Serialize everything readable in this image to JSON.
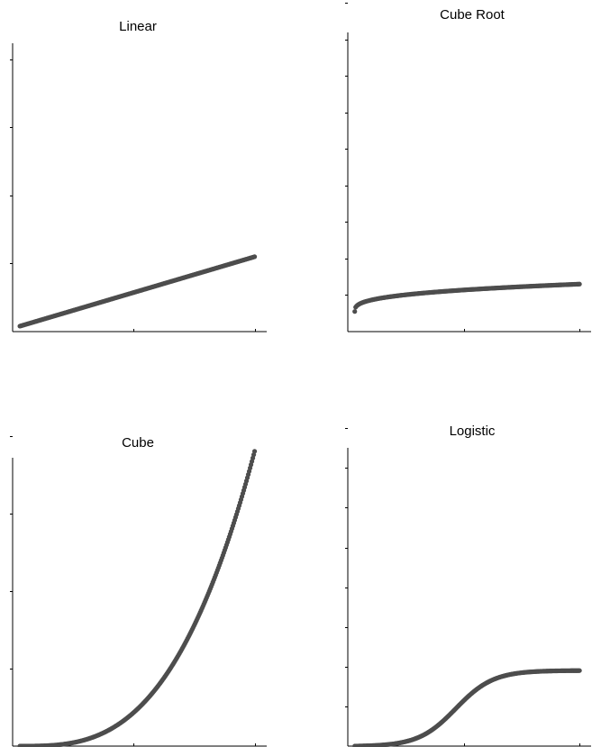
{
  "chart_data": [
    {
      "type": "scatter",
      "title": "Linear",
      "xlim": [
        0,
        1.05
      ],
      "ylim": [
        0,
        4.7
      ],
      "yticks": 5,
      "xticks": 2,
      "x_range": [
        0.03,
        1.0
      ],
      "y_at_x_min": 0.08,
      "y_at_x_max": 1.1,
      "points": 260,
      "grid": false
    },
    {
      "type": "scatter",
      "title": "Cube Root",
      "xlim": [
        0,
        1.05
      ],
      "ylim": [
        0,
        9
      ],
      "yticks": 9,
      "xticks": 2,
      "x_range": [
        0.03,
        1.0
      ],
      "y_at_x_min": 0.55,
      "y_at_x_max": 1.3,
      "points": 260,
      "grid": false
    },
    {
      "type": "scatter",
      "title": "Cube",
      "xlim": [
        0,
        1.05
      ],
      "ylim": [
        0,
        4.1
      ],
      "yticks": 4,
      "xticks": 2,
      "x_range": [
        0.03,
        1.0
      ],
      "y_at_x_min": 0.0,
      "y_at_x_max": 3.8,
      "points": 260,
      "grid": false
    },
    {
      "type": "scatter",
      "title": "Logistic",
      "xlim": [
        0,
        1.05
      ],
      "ylim": [
        0,
        8.3
      ],
      "yticks": 8,
      "xticks": 2,
      "x_range": [
        0.03,
        1.0
      ],
      "y_at_x_min": 0.0,
      "y_at_x_max": 1.9,
      "points": 260,
      "grid": false
    }
  ]
}
